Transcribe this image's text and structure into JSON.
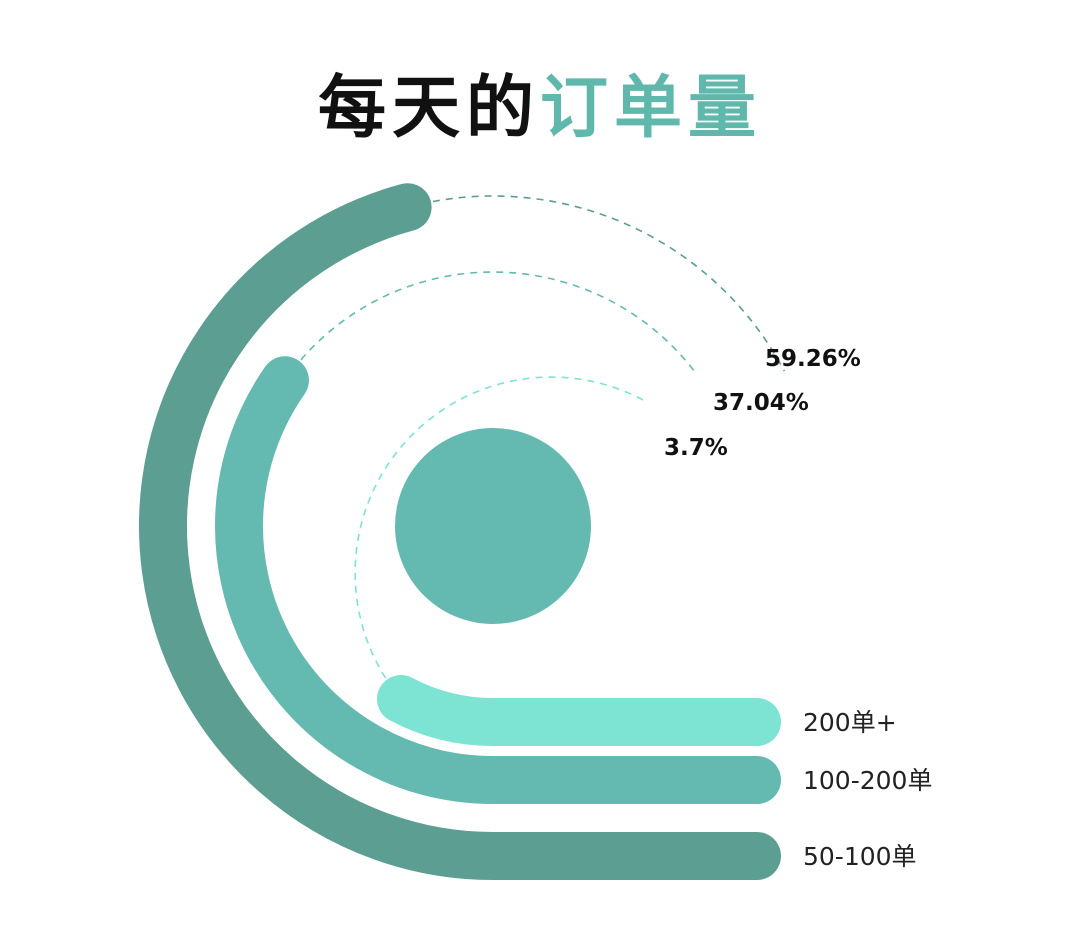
{
  "title": {
    "part1": "每天的",
    "part2": "订单量"
  },
  "colors": {
    "title_accent": "#5fb8ab"
  },
  "chart_data": {
    "type": "radial-bar",
    "title": "每天的订单量",
    "unit": "%",
    "series": [
      {
        "name": "50-100单",
        "value": 59.26,
        "label": "59.26%",
        "color": "#5c9e91"
      },
      {
        "name": "100-200单",
        "value": 37.04,
        "label": "37.04%",
        "color": "#64b9b0"
      },
      {
        "name": "200单+",
        "value": 3.7,
        "label": "3.7%",
        "color": "#7de3d2"
      }
    ],
    "center_dot_color": "#64b9b0"
  }
}
